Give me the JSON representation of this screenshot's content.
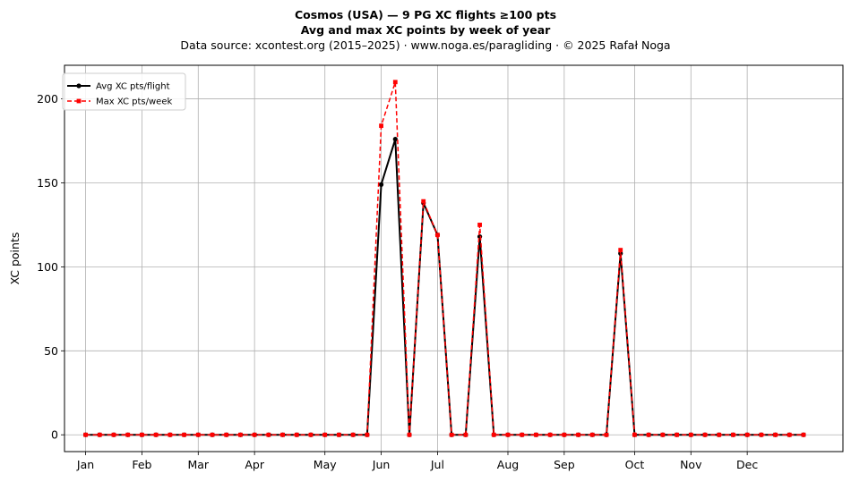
{
  "chart_data": {
    "type": "line",
    "title": "Cosmos (USA)  —  9 PG XC flights ≥100 pts",
    "subtitle": "Avg and max XC points by week of year",
    "source": "Data source: xcontest.org (2015–2025)  ·  www.noga.es/paragliding  ·  © 2025 Rafał Noga",
    "xlabel": "",
    "ylabel": "XC points",
    "ylim": [
      -10,
      220
    ],
    "xlim": [
      -1.5,
      53.8
    ],
    "grid": true,
    "legend_position": "top-left",
    "yticks": [
      0,
      50,
      100,
      150,
      200
    ],
    "xticks": [
      {
        "label": "Jan",
        "x": 0
      },
      {
        "label": "Feb",
        "x": 4
      },
      {
        "label": "Mar",
        "x": 8
      },
      {
        "label": "Apr",
        "x": 12
      },
      {
        "label": "May",
        "x": 17
      },
      {
        "label": "Jun",
        "x": 21
      },
      {
        "label": "Jul",
        "x": 25
      },
      {
        "label": "Aug",
        "x": 30
      },
      {
        "label": "Sep",
        "x": 34
      },
      {
        "label": "Oct",
        "x": 39
      },
      {
        "label": "Nov",
        "x": 43
      },
      {
        "label": "Dec",
        "x": 47
      }
    ],
    "x": [
      0,
      1,
      2,
      3,
      4,
      5,
      6,
      7,
      8,
      9,
      10,
      11,
      12,
      13,
      14,
      15,
      16,
      17,
      18,
      19,
      20,
      21,
      22,
      23,
      24,
      25,
      26,
      27,
      28,
      29,
      30,
      31,
      32,
      33,
      34,
      35,
      36,
      37,
      38,
      39,
      40,
      41,
      42,
      43,
      44,
      45,
      46,
      47,
      48,
      49,
      50,
      51
    ],
    "series": [
      {
        "name": "Avg XC pts/flight",
        "color": "#000000",
        "style": "solid",
        "marker": "circle",
        "values": [
          0,
          0,
          0,
          0,
          0,
          0,
          0,
          0,
          0,
          0,
          0,
          0,
          0,
          0,
          0,
          0,
          0,
          0,
          0,
          0,
          0,
          149,
          176,
          0,
          138,
          119,
          0,
          0,
          118,
          0,
          0,
          0,
          0,
          0,
          0,
          0,
          0,
          0,
          108,
          0,
          0,
          0,
          0,
          0,
          0,
          0,
          0,
          0,
          0,
          0,
          0,
          0
        ]
      },
      {
        "name": "Max XC pts/week",
        "color": "#ff0000",
        "style": "dashed",
        "marker": "square",
        "values": [
          0,
          0,
          0,
          0,
          0,
          0,
          0,
          0,
          0,
          0,
          0,
          0,
          0,
          0,
          0,
          0,
          0,
          0,
          0,
          0,
          0,
          184,
          210,
          0,
          139,
          119,
          0,
          0,
          125,
          0,
          0,
          0,
          0,
          0,
          0,
          0,
          0,
          0,
          110,
          0,
          0,
          0,
          0,
          0,
          0,
          0,
          0,
          0,
          0,
          0,
          0,
          0
        ]
      }
    ]
  }
}
